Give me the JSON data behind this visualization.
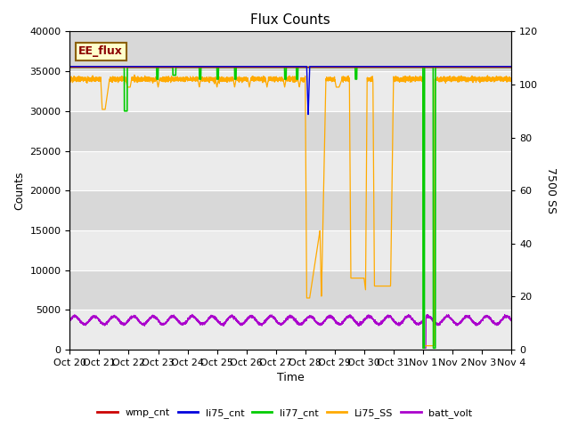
{
  "title": "Flux Counts",
  "xlabel": "Time",
  "ylabel_left": "Counts",
  "ylabel_right": "7500 SS",
  "annotation": "EE_flux",
  "ylim_left": [
    0,
    40000
  ],
  "ylim_right": [
    0,
    120
  ],
  "x_tick_labels": [
    "Oct 20",
    "Oct 21",
    "Oct 22",
    "Oct 23",
    "Oct 24",
    "Oct 25",
    "Oct 26",
    "Oct 27",
    "Oct 28",
    "Oct 29",
    "Oct 30",
    "Oct 31",
    "Nov 1",
    "Nov 2",
    "Nov 3",
    "Nov 4"
  ],
  "bg_color_light": "#ebebeb",
  "bg_color_dark": "#d8d8d8",
  "legend_entries": [
    "wmp_cnt",
    "li75_cnt",
    "li77_cnt",
    "Li75_SS",
    "batt_volt"
  ],
  "line_colors": {
    "wmp_cnt": "#cc0000",
    "li75_cnt": "#0000dd",
    "li77_cnt": "#00cc00",
    "Li75_SS": "#ffaa00",
    "batt_volt": "#aa00cc"
  },
  "li77_base": 35500,
  "li75ss_base": 34000,
  "batt_base": 3700,
  "batt_amp": 500,
  "batt_freq": 1.5
}
